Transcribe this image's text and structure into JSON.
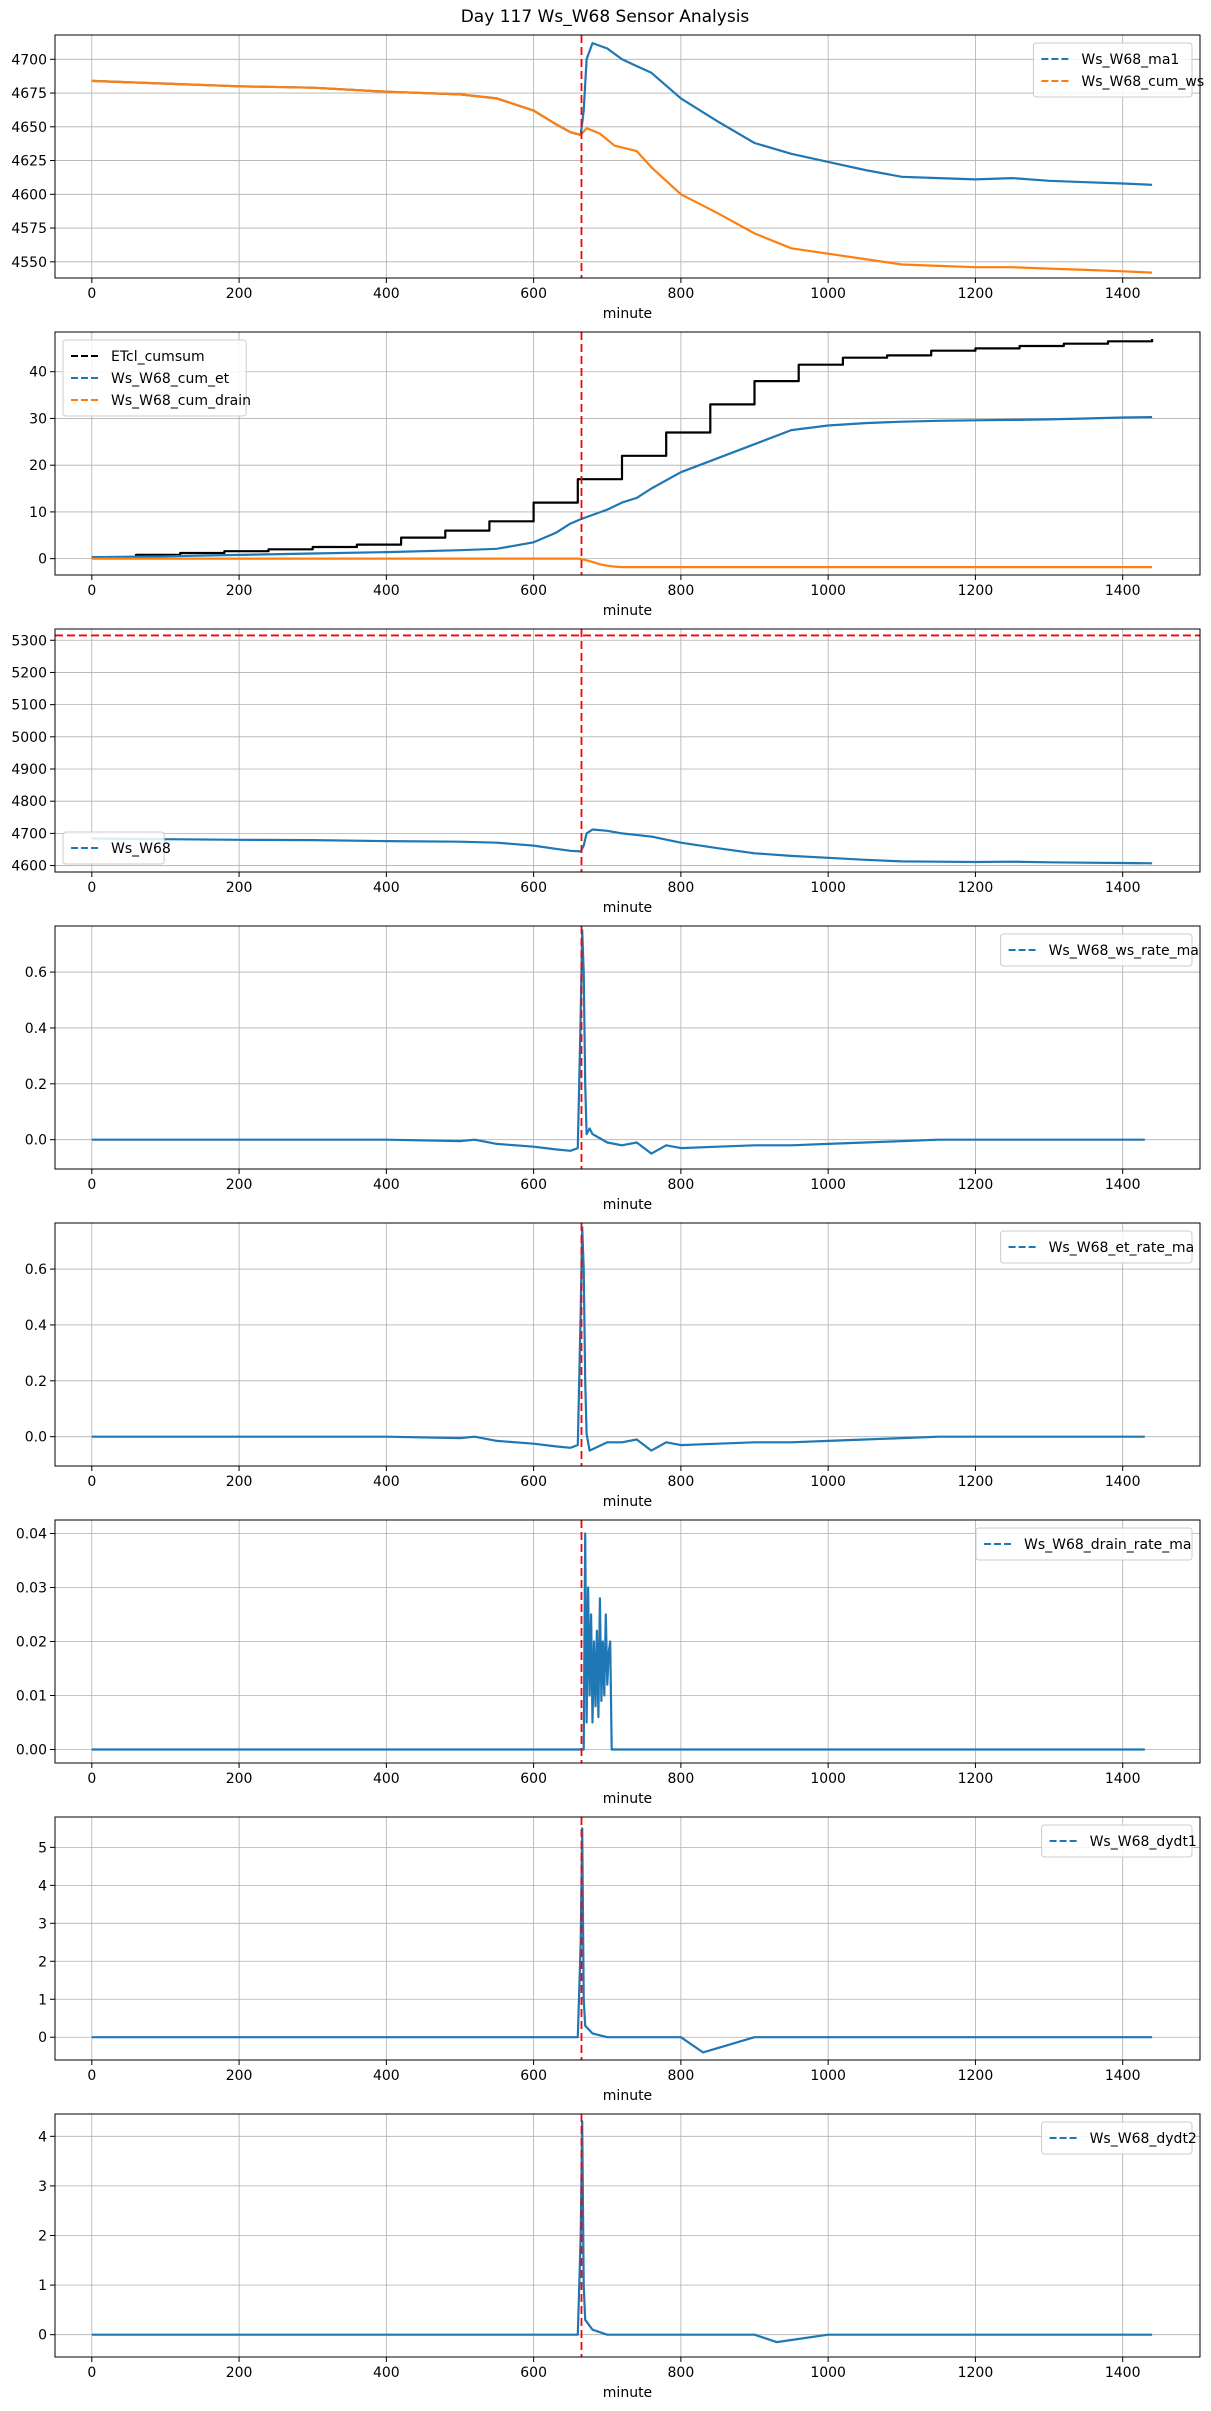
{
  "figure": {
    "title": "Day 117 Ws_W68 Sensor Analysis"
  },
  "chart_data": [
    {
      "type": "line",
      "xlabel": "minute",
      "xlim": [
        -50,
        1505
      ],
      "ylim": [
        4538,
        4718
      ],
      "xticks": [
        0,
        200,
        400,
        600,
        800,
        1000,
        1200,
        1400
      ],
      "yticks": [
        4550,
        4575,
        4600,
        4625,
        4650,
        4675,
        4700
      ],
      "grid": true,
      "legend": "upper right",
      "vline": 665,
      "series": [
        {
          "name": "Ws_W68_ma1",
          "color": "#1f77b4",
          "dashed": true,
          "x": [
            0,
            100,
            200,
            300,
            400,
            500,
            550,
            600,
            630,
            650,
            664,
            668,
            672,
            680,
            700,
            720,
            740,
            760,
            800,
            850,
            900,
            950,
            1000,
            1050,
            1100,
            1150,
            1200,
            1250,
            1300,
            1350,
            1400,
            1440
          ],
          "y": [
            4684,
            4682,
            4680,
            4679,
            4676,
            4674,
            4671,
            4662,
            4652,
            4646,
            4644,
            4662,
            4700,
            4712,
            4708,
            4700,
            4695,
            4690,
            4671,
            4654,
            4638,
            4630,
            4624,
            4618,
            4613,
            4612,
            4611,
            4612,
            4610,
            4609,
            4608,
            4607
          ]
        },
        {
          "name": "Ws_W68_cum_ws",
          "color": "#ff7f0e",
          "dashed": true,
          "x": [
            0,
            100,
            200,
            300,
            400,
            500,
            550,
            600,
            630,
            650,
            664,
            672,
            690,
            710,
            740,
            760,
            800,
            850,
            900,
            950,
            1000,
            1050,
            1100,
            1150,
            1200,
            1250,
            1300,
            1350,
            1400,
            1440
          ],
          "y": [
            4684,
            4682,
            4680,
            4679,
            4676,
            4674,
            4671,
            4662,
            4652,
            4646,
            4644,
            4649,
            4645,
            4636,
            4632,
            4620,
            4600,
            4586,
            4571,
            4560,
            4556,
            4552,
            4548,
            4547,
            4546,
            4546,
            4545,
            4544,
            4543,
            4542
          ]
        }
      ]
    },
    {
      "type": "line",
      "xlabel": "minute",
      "xlim": [
        -50,
        1505
      ],
      "ylim": [
        -3.5,
        48.5
      ],
      "xticks": [
        0,
        200,
        400,
        600,
        800,
        1000,
        1200,
        1400
      ],
      "yticks": [
        0,
        10,
        20,
        30,
        40
      ],
      "grid": true,
      "legend": "upper left",
      "vline": 665,
      "series": [
        {
          "name": "ETcl_cumsum",
          "color": "#000000",
          "dashed": true,
          "step": true,
          "x": [
            0,
            60,
            120,
            180,
            240,
            300,
            360,
            420,
            480,
            540,
            600,
            660,
            720,
            780,
            840,
            900,
            960,
            1020,
            1080,
            1140,
            1200,
            1260,
            1320,
            1380,
            1440
          ],
          "y": [
            0.3,
            0.8,
            1.2,
            1.6,
            2.0,
            2.5,
            3.0,
            4.5,
            6.0,
            8.0,
            12.0,
            17.0,
            22.0,
            27.0,
            33.0,
            38.0,
            41.5,
            43.0,
            43.5,
            44.5,
            45.0,
            45.5,
            46.0,
            46.5,
            47.0
          ]
        },
        {
          "name": "Ws_W68_cum_et",
          "color": "#1f77b4",
          "dashed": true,
          "x": [
            0,
            100,
            200,
            300,
            400,
            500,
            550,
            600,
            630,
            650,
            665,
            700,
            720,
            740,
            760,
            800,
            850,
            900,
            950,
            1000,
            1050,
            1100,
            1150,
            1200,
            1250,
            1300,
            1350,
            1400,
            1440
          ],
          "y": [
            0.3,
            0.5,
            0.8,
            1.1,
            1.4,
            1.8,
            2.1,
            3.5,
            5.5,
            7.5,
            8.5,
            10.5,
            12.0,
            13.0,
            15.0,
            18.5,
            21.5,
            24.5,
            27.5,
            28.5,
            29.0,
            29.3,
            29.5,
            29.6,
            29.7,
            29.8,
            30.0,
            30.2,
            30.3
          ]
        },
        {
          "name": "Ws_W68_cum_drain",
          "color": "#ff7f0e",
          "dashed": true,
          "x": [
            0,
            660,
            668,
            680,
            690,
            700,
            710,
            720,
            1440
          ],
          "y": [
            0,
            0,
            -0.2,
            -0.7,
            -1.2,
            -1.5,
            -1.7,
            -1.8,
            -1.8
          ]
        }
      ]
    },
    {
      "type": "line",
      "xlabel": "minute",
      "xlim": [
        -50,
        1505
      ],
      "ylim": [
        4580,
        5335
      ],
      "xticks": [
        0,
        200,
        400,
        600,
        800,
        1000,
        1200,
        1400
      ],
      "yticks": [
        4600,
        4700,
        4800,
        4900,
        5000,
        5100,
        5200,
        5300
      ],
      "grid": true,
      "legend": "lower left",
      "vline": 665,
      "hline": 5315,
      "series": [
        {
          "name": "Ws_W68",
          "color": "#1f77b4",
          "dashed": true,
          "x": [
            0,
            100,
            200,
            300,
            400,
            500,
            550,
            600,
            630,
            650,
            664,
            668,
            672,
            680,
            700,
            720,
            760,
            800,
            850,
            900,
            950,
            1000,
            1050,
            1100,
            1150,
            1200,
            1250,
            1300,
            1350,
            1400,
            1440
          ],
          "y": [
            4684,
            4682,
            4680,
            4679,
            4676,
            4674,
            4671,
            4662,
            4652,
            4646,
            4644,
            4662,
            4700,
            4712,
            4708,
            4700,
            4690,
            4671,
            4654,
            4638,
            4630,
            4624,
            4618,
            4613,
            4612,
            4611,
            4612,
            4610,
            4609,
            4608,
            4607
          ]
        }
      ]
    },
    {
      "type": "line",
      "xlabel": "minute",
      "xlim": [
        -50,
        1505
      ],
      "ylim": [
        -0.105,
        0.765
      ],
      "xticks": [
        0,
        200,
        400,
        600,
        800,
        1000,
        1200,
        1400
      ],
      "yticks": [
        0.0,
        0.2,
        0.4,
        0.6
      ],
      "grid": true,
      "legend": "upper right",
      "vline": 665,
      "series": [
        {
          "name": "Ws_W68_ws_rate_ma",
          "color": "#1f77b4",
          "dashed": true,
          "x": [
            0,
            100,
            200,
            300,
            400,
            500,
            520,
            550,
            600,
            630,
            650,
            660,
            664,
            666,
            668,
            670,
            672,
            676,
            680,
            700,
            720,
            740,
            760,
            780,
            800,
            850,
            900,
            950,
            1000,
            1050,
            1100,
            1150,
            1200,
            1250,
            1300,
            1350,
            1400,
            1430
          ],
          "y": [
            0,
            0,
            0,
            0,
            0,
            -0.005,
            0,
            -0.015,
            -0.025,
            -0.035,
            -0.04,
            -0.03,
            0.45,
            0.75,
            0.6,
            0.2,
            0.02,
            0.04,
            0.02,
            -0.01,
            -0.02,
            -0.01,
            -0.05,
            -0.02,
            -0.03,
            -0.025,
            -0.02,
            -0.02,
            -0.015,
            -0.01,
            -0.005,
            0.0,
            0.0,
            0.0,
            0.0,
            0.0,
            0.0,
            0.0
          ]
        }
      ]
    },
    {
      "type": "line",
      "xlabel": "minute",
      "xlim": [
        -50,
        1505
      ],
      "ylim": [
        -0.105,
        0.765
      ],
      "xticks": [
        0,
        200,
        400,
        600,
        800,
        1000,
        1200,
        1400
      ],
      "yticks": [
        0.0,
        0.2,
        0.4,
        0.6
      ],
      "grid": true,
      "legend": "upper right",
      "vline": 665,
      "series": [
        {
          "name": "Ws_W68_et_rate_ma",
          "color": "#1f77b4",
          "dashed": true,
          "x": [
            0,
            100,
            200,
            300,
            400,
            500,
            520,
            550,
            600,
            630,
            650,
            660,
            664,
            666,
            668,
            670,
            672,
            676,
            700,
            720,
            740,
            760,
            780,
            800,
            850,
            900,
            950,
            1000,
            1050,
            1100,
            1150,
            1200,
            1250,
            1300,
            1350,
            1400,
            1430
          ],
          "y": [
            0,
            0,
            0,
            0,
            0,
            -0.005,
            0,
            -0.015,
            -0.025,
            -0.035,
            -0.04,
            -0.03,
            0.45,
            0.75,
            0.6,
            0.2,
            0.01,
            -0.05,
            -0.02,
            -0.02,
            -0.01,
            -0.05,
            -0.02,
            -0.03,
            -0.025,
            -0.02,
            -0.02,
            -0.015,
            -0.01,
            -0.005,
            0.0,
            0.0,
            0.0,
            0.0,
            0.0,
            0.0,
            0.0
          ]
        }
      ]
    },
    {
      "type": "line",
      "xlabel": "minute",
      "xlim": [
        -50,
        1505
      ],
      "ylim": [
        -0.0025,
        0.0425
      ],
      "xticks": [
        0,
        200,
        400,
        600,
        800,
        1000,
        1200,
        1400
      ],
      "yticks": [
        0.0,
        0.01,
        0.02,
        0.03,
        0.04
      ],
      "grid": true,
      "legend": "upper right",
      "vline": 665,
      "series": [
        {
          "name": "Ws_W68_drain_rate_ma",
          "color": "#1f77b4",
          "dashed": true,
          "x": [
            0,
            660,
            668,
            670,
            672,
            674,
            676,
            678,
            680,
            682,
            684,
            686,
            688,
            690,
            692,
            694,
            696,
            698,
            700,
            702,
            704,
            706,
            1430
          ],
          "y": [
            0,
            0,
            0,
            0.04,
            0.005,
            0.03,
            0.01,
            0.025,
            0.005,
            0.02,
            0.008,
            0.022,
            0.006,
            0.028,
            0.009,
            0.02,
            0.01,
            0.025,
            0.012,
            0.018,
            0.02,
            0,
            0
          ]
        }
      ]
    },
    {
      "type": "line",
      "xlabel": "minute",
      "xlim": [
        -50,
        1505
      ],
      "ylim": [
        -0.6,
        5.8
      ],
      "xticks": [
        0,
        200,
        400,
        600,
        800,
        1000,
        1200,
        1400
      ],
      "yticks": [
        0,
        1,
        2,
        3,
        4,
        5
      ],
      "grid": true,
      "legend": "upper right",
      "vline": 665,
      "series": [
        {
          "name": "Ws_W68_dydt1",
          "color": "#1f77b4",
          "dashed": true,
          "x": [
            0,
            100,
            200,
            300,
            400,
            500,
            600,
            660,
            664,
            666,
            668,
            670,
            680,
            700,
            800,
            830,
            900,
            1000,
            1100,
            1200,
            1300,
            1440
          ],
          "y": [
            0,
            0,
            0,
            0,
            0,
            0,
            0,
            0,
            2.5,
            5.5,
            1.0,
            0.3,
            0.1,
            0,
            0,
            -0.4,
            0,
            0,
            0,
            0,
            0,
            0
          ]
        }
      ]
    },
    {
      "type": "line",
      "xlabel": "minute",
      "xlim": [
        -50,
        1505
      ],
      "ylim": [
        -0.45,
        4.45
      ],
      "xticks": [
        0,
        200,
        400,
        600,
        800,
        1000,
        1200,
        1400
      ],
      "yticks": [
        0,
        1,
        2,
        3,
        4
      ],
      "grid": true,
      "legend": "upper right",
      "vline": 665,
      "series": [
        {
          "name": "Ws_W68_dydt2",
          "color": "#1f77b4",
          "dashed": true,
          "x": [
            0,
            100,
            200,
            300,
            400,
            500,
            600,
            660,
            664,
            666,
            668,
            670,
            680,
            700,
            800,
            900,
            930,
            1000,
            1100,
            1200,
            1300,
            1440
          ],
          "y": [
            0,
            0,
            0,
            0,
            0,
            0,
            0,
            0,
            2.0,
            4.3,
            1.0,
            0.3,
            0.1,
            0,
            0,
            0,
            -0.15,
            0,
            0,
            0,
            0,
            0
          ]
        }
      ]
    }
  ]
}
